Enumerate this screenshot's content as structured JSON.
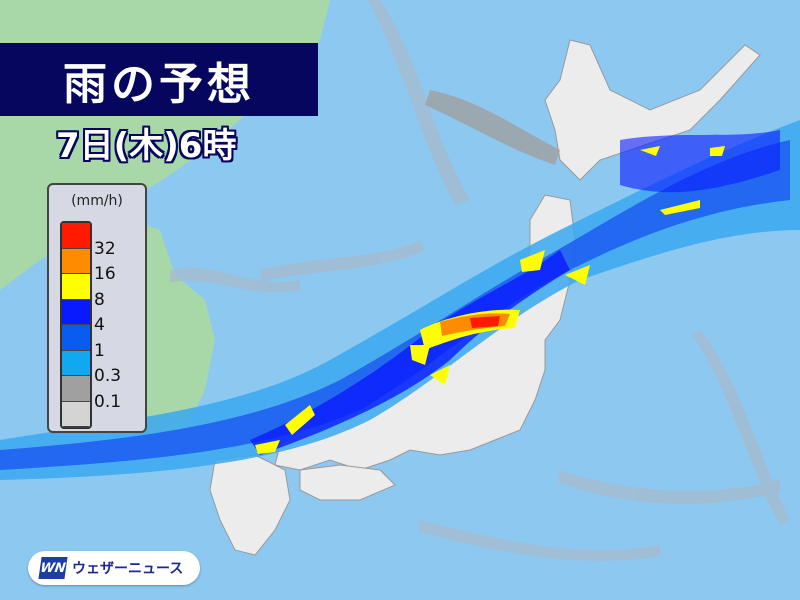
{
  "header": {
    "title": "雨の予想",
    "time": "7日(木)6時"
  },
  "legend": {
    "unit": "(mm/h)",
    "levels": [
      {
        "label": "",
        "color": "#ff1a00"
      },
      {
        "label": "32",
        "color": "#ff8c00"
      },
      {
        "label": "16",
        "color": "#ffff00"
      },
      {
        "label": "8",
        "color": "#0a1aff"
      },
      {
        "label": "4",
        "color": "#0a5cf0"
      },
      {
        "label": "1",
        "color": "#10a8f0"
      },
      {
        "label": "0.3",
        "color": "#a0a0a0"
      },
      {
        "label": "0.1",
        "color": "#d4d4d4"
      }
    ]
  },
  "logo": {
    "mark": "WN",
    "text": "ウェザーニュース"
  },
  "colors": {
    "sea": "#8cc8f0",
    "land_continent": "#a8d8a8",
    "land_japan": "#ececec",
    "title_bg": "#06065e"
  }
}
